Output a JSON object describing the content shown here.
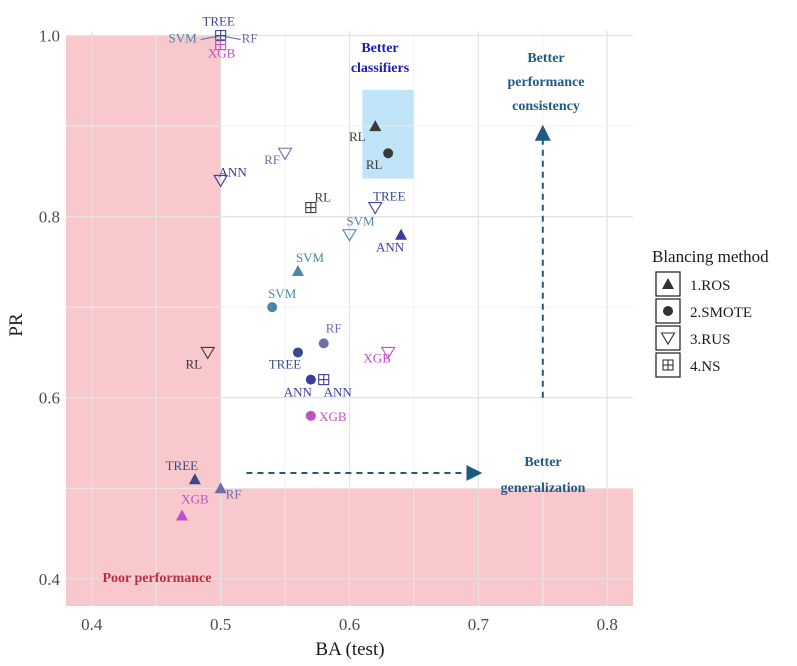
{
  "chart_data": {
    "type": "scatter",
    "title": "",
    "xlabel": "BA (test)",
    "ylabel": "PR",
    "xlim": [
      0.38,
      0.82
    ],
    "ylim": [
      0.37,
      1.005
    ],
    "x_ticks": [
      0.4,
      0.5,
      0.6,
      0.7,
      0.8
    ],
    "x_tick_labels": [
      "0.4",
      "0.5",
      "0.6",
      "0.7",
      "0.8"
    ],
    "y_ticks": [
      0.4,
      0.6,
      0.8,
      1.0
    ],
    "y_tick_labels": [
      "0.4",
      "0.6",
      "0.8",
      "1.0"
    ],
    "grid": true,
    "legend": {
      "title": "Blancing method",
      "position": "right",
      "entries": [
        {
          "label": "1.ROS",
          "shape": "triangle-up"
        },
        {
          "label": "2.SMOTE",
          "shape": "circle"
        },
        {
          "label": "3.RUS",
          "shape": "triangle-down-open"
        },
        {
          "label": "4.NS",
          "shape": "square-plus"
        }
      ]
    },
    "colors": {
      "RL": "#3a3a3a",
      "TREE": "#3b4a8c",
      "SVM": "#4a86a8",
      "RF": "#6e6ea8",
      "ANN": "#3c3a9c",
      "XGB": "#c050c8"
    },
    "points": [
      {
        "model": "RL",
        "method": "ROS",
        "x": 0.62,
        "y": 0.9,
        "label": "RL"
      },
      {
        "model": "RL",
        "method": "SMOTE",
        "x": 0.63,
        "y": 0.87,
        "label": "RL"
      },
      {
        "model": "RL",
        "method": "RUS",
        "x": 0.49,
        "y": 0.65,
        "label": "RL"
      },
      {
        "model": "RL",
        "method": "NS",
        "x": 0.57,
        "y": 0.81,
        "label": "RL"
      },
      {
        "model": "TREE",
        "method": "ROS",
        "x": 0.48,
        "y": 0.51,
        "label": "TREE"
      },
      {
        "model": "TREE",
        "method": "SMOTE",
        "x": 0.56,
        "y": 0.65,
        "label": "TREE"
      },
      {
        "model": "TREE",
        "method": "RUS",
        "x": 0.62,
        "y": 0.81,
        "label": "TREE"
      },
      {
        "model": "TREE",
        "method": "NS",
        "x": 0.5,
        "y": 1.0,
        "label": "TREE"
      },
      {
        "model": "SVM",
        "method": "ROS",
        "x": 0.56,
        "y": 0.74,
        "label": "SVM"
      },
      {
        "model": "SVM",
        "method": "SMOTE",
        "x": 0.54,
        "y": 0.7,
        "label": "SVM"
      },
      {
        "model": "SVM",
        "method": "RUS",
        "x": 0.6,
        "y": 0.78,
        "label": "SVM"
      },
      {
        "model": "SVM",
        "method": "NS",
        "x": 0.5,
        "y": 0.998,
        "label": "SVM"
      },
      {
        "model": "RF",
        "method": "ROS",
        "x": 0.5,
        "y": 0.5,
        "label": "RF"
      },
      {
        "model": "RF",
        "method": "SMOTE",
        "x": 0.58,
        "y": 0.66,
        "label": "RF"
      },
      {
        "model": "RF",
        "method": "RUS",
        "x": 0.55,
        "y": 0.87,
        "label": "RF"
      },
      {
        "model": "RF",
        "method": "NS",
        "x": 0.5,
        "y": 0.998,
        "label": "RF"
      },
      {
        "model": "ANN",
        "method": "ROS",
        "x": 0.64,
        "y": 0.78,
        "label": "ANN"
      },
      {
        "model": "ANN",
        "method": "SMOTE",
        "x": 0.57,
        "y": 0.62,
        "label": "ANN"
      },
      {
        "model": "ANN",
        "method": "RUS",
        "x": 0.5,
        "y": 0.84,
        "label": "ANN"
      },
      {
        "model": "ANN",
        "method": "NS",
        "x": 0.58,
        "y": 0.62,
        "label": "ANN"
      },
      {
        "model": "XGB",
        "method": "ROS",
        "x": 0.47,
        "y": 0.47,
        "label": "XGB"
      },
      {
        "model": "XGB",
        "method": "SMOTE",
        "x": 0.57,
        "y": 0.58,
        "label": "XGB"
      },
      {
        "model": "XGB",
        "method": "RUS",
        "x": 0.63,
        "y": 0.65,
        "label": "XGB"
      },
      {
        "model": "XGB",
        "method": "NS",
        "x": 0.5,
        "y": 0.99,
        "label": "XGB"
      }
    ],
    "regions": [
      {
        "name": "poor-performance-vertical",
        "x": [
          0.38,
          0.5
        ],
        "y": [
          0.37,
          1.0
        ],
        "color": "#f8c8cc"
      },
      {
        "name": "poor-performance-horizontal",
        "x": [
          0.5,
          0.82
        ],
        "y": [
          0.37,
          0.5
        ],
        "color": "#f8c8cc"
      },
      {
        "name": "better-classifiers",
        "x": [
          0.61,
          0.65
        ],
        "y": [
          0.842,
          0.94
        ],
        "color": "#bfe3f7"
      }
    ],
    "annotations": [
      {
        "name": "poor-performance",
        "text": "Poor performance",
        "color": "#c8283c"
      },
      {
        "name": "better-classifiers",
        "text": "Better classifiers",
        "color": "#1a1ac0"
      },
      {
        "name": "better-performance-consistency",
        "text": "Better performance consistency",
        "color": "#1e5a82"
      },
      {
        "name": "better-generalization",
        "text": "Better generalization",
        "color": "#1e5a82"
      }
    ]
  }
}
